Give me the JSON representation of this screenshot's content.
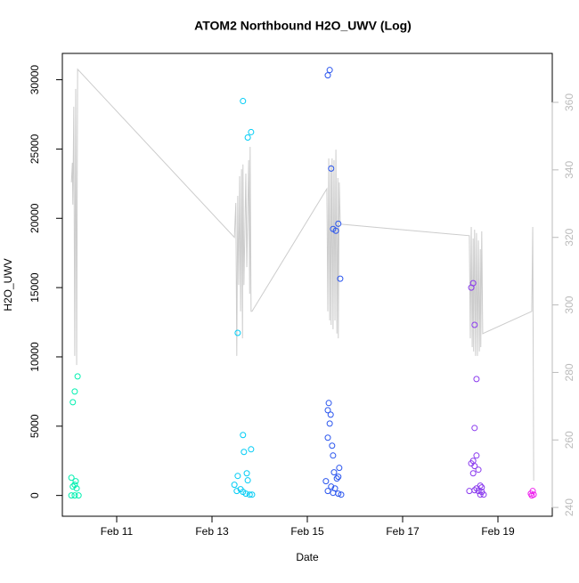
{
  "chart_data": {
    "type": "scatter",
    "title": "ATOM2 Northbound H2O_UWV (Log)",
    "x_label": "Date",
    "y_label": "H2O_UWV",
    "xlim": [
      9.86,
      20.14
    ],
    "xticks": [
      {
        "value": 11,
        "label": "Feb 11"
      },
      {
        "value": 13,
        "label": "Feb 13"
      },
      {
        "value": 15,
        "label": "Feb 15"
      },
      {
        "value": 17,
        "label": "Feb 17"
      },
      {
        "value": 19,
        "label": "Feb 19"
      }
    ],
    "ylim": [
      -1500,
      31900
    ],
    "yticks": [
      0,
      5000,
      10000,
      15000,
      20000,
      25000,
      30000
    ],
    "y2lim": [
      237.4,
      374.5
    ],
    "y2ticks": [
      240,
      260,
      280,
      300,
      320,
      340,
      360
    ],
    "y2_color": "#bbbbbb",
    "series": [
      {
        "color": "#00f0b0",
        "x": [
          10.08,
          10.12,
          10.18,
          10.05,
          10.12,
          10.08,
          10.16,
          10.05,
          10.12,
          10.2,
          10.14
        ],
        "values": [
          6730,
          7500,
          8590,
          1280,
          770,
          640,
          510,
          0,
          0,
          0,
          1030
        ]
      },
      {
        "color": "#00ccf5",
        "x": [
          13.65,
          13.75,
          13.82,
          13.54,
          13.65,
          13.67,
          13.82,
          13.54,
          13.73,
          13.75,
          13.47,
          13.6,
          13.52,
          13.65,
          13.71,
          13.79,
          13.84
        ],
        "values": [
          28460,
          25830,
          26220,
          11730,
          4360,
          3140,
          3330,
          1410,
          1600,
          1090,
          770,
          450,
          320,
          260,
          130,
          60,
          60
        ]
      },
      {
        "color": "#2a55ee",
        "x": [
          15.47,
          15.43,
          15.5,
          15.54,
          15.6,
          15.65,
          15.69,
          15.45,
          15.43,
          15.49,
          15.47,
          15.43,
          15.52,
          15.54,
          15.67,
          15.56,
          15.39,
          15.65,
          15.62,
          15.5,
          15.58,
          15.43,
          15.54,
          15.65,
          15.71
        ],
        "values": [
          30700,
          30320,
          23590,
          19230,
          19100,
          19610,
          15640,
          6670,
          6150,
          5830,
          5190,
          4170,
          3590,
          2880,
          1990,
          1670,
          1030,
          1350,
          1220,
          640,
          510,
          320,
          190,
          130,
          60
        ]
      },
      {
        "color": "#8a3aee",
        "x": [
          18.48,
          18.44,
          18.51,
          18.55,
          18.51,
          18.55,
          18.48,
          18.51,
          18.44,
          18.59,
          18.48,
          18.63,
          18.66,
          18.55,
          18.51,
          18.4,
          18.59,
          18.66,
          18.63,
          18.7
        ],
        "values": [
          15320,
          15000,
          12310,
          8400,
          4870,
          2880,
          2500,
          2120,
          2310,
          1860,
          1600,
          710,
          580,
          510,
          380,
          320,
          320,
          260,
          60,
          60
        ]
      },
      {
        "color": "#ee22ee",
        "x": [
          19.73,
          19.69,
          19.71,
          19.75
        ],
        "values": [
          320,
          130,
          0,
          60
        ]
      },
      {
        "type": "line",
        "axis": "y2",
        "color": "#cccccc",
        "x": [
          10.05,
          10.07,
          10.08,
          10.1,
          10.12,
          10.14,
          10.16,
          10.18,
          13.47,
          13.5,
          13.52,
          13.54,
          13.56,
          13.58,
          13.6,
          13.62,
          13.64,
          13.65,
          13.67,
          13.71,
          13.73,
          13.77,
          13.79,
          13.8,
          13.82,
          13.84,
          15.41,
          15.43,
          15.45,
          15.47,
          15.49,
          15.5,
          15.52,
          15.54,
          15.56,
          15.58,
          15.6,
          15.62,
          15.64,
          15.65,
          15.67,
          15.69,
          15.71,
          18.4,
          18.42,
          18.44,
          18.46,
          18.48,
          18.49,
          18.51,
          18.53,
          18.55,
          18.57,
          18.59,
          18.61,
          18.63,
          18.64,
          18.66,
          18.68,
          19.71,
          19.73,
          19.75
        ],
        "values": [
          336.3,
          342.1,
          329.7,
          358.7,
          284.9,
          364.0,
          282.2,
          369.8,
          320.0,
          330.2,
          284.9,
          332.3,
          305.9,
          338.1,
          298.1,
          340.2,
          290.1,
          341.6,
          305.9,
          338.9,
          311.2,
          342.9,
          303.3,
          346.8,
          298.1,
          298.1,
          334.4,
          298.1,
          343.4,
          295.4,
          341.6,
          294.1,
          343.4,
          292.8,
          342.9,
          295.4,
          346.0,
          291.5,
          337.6,
          290.1,
          336.3,
          324.4,
          323.9,
          320.5,
          290.1,
          323.1,
          287.5,
          319.7,
          286.2,
          322.3,
          284.9,
          321.3,
          284.9,
          319.1,
          286.2,
          316.5,
          287.5,
          321.8,
          291.5,
          298.1,
          323.1,
          247.9
        ]
      }
    ]
  }
}
